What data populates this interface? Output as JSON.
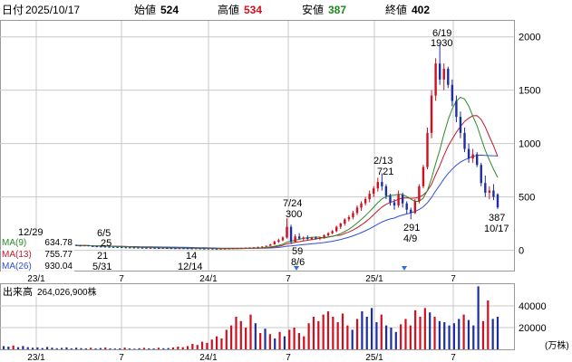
{
  "header": {
    "date_label": "日付",
    "date_value": "2025/10/17",
    "open_label": "始値",
    "open_value": "524",
    "high_label": "高値",
    "high_value": "534",
    "low_label": "安値",
    "low_value": "387",
    "close_label": "終値",
    "close_value": "402"
  },
  "colors": {
    "up": "#d0101e",
    "down": "#1c2ea0",
    "ma9": "#2a8a2a",
    "ma13": "#c41a2a",
    "ma26": "#2f4fd8",
    "grid": "#c8c8c8",
    "marker": "#2f6fd8",
    "high_value": "#d0101e",
    "low_value": "#1d8a1d"
  },
  "chart_data": [
    {
      "type": "candlestick",
      "description_x": "weekly candles",
      "y_ticks": [
        "0",
        "500",
        "1000",
        "1500",
        "2000"
      ],
      "ylim": [
        -190,
        2150
      ],
      "x_ticks": [
        "23/1",
        "7",
        "24/1",
        "7",
        "25/1",
        "7"
      ],
      "candles": [
        {
          "o": 50,
          "h": 55,
          "l": 45,
          "c": 45
        },
        {
          "o": 45,
          "h": 50,
          "l": 42,
          "c": 44
        },
        {
          "o": 44,
          "h": 48,
          "l": 40,
          "c": 46
        },
        {
          "o": 46,
          "h": 48,
          "l": 38,
          "c": 40
        },
        {
          "o": 40,
          "h": 44,
          "l": 36,
          "c": 38
        },
        {
          "o": 38,
          "h": 42,
          "l": 34,
          "c": 36
        },
        {
          "o": 36,
          "h": 40,
          "l": 33,
          "c": 35
        },
        {
          "o": 35,
          "h": 38,
          "l": 31,
          "c": 33
        },
        {
          "o": 33,
          "h": 36,
          "l": 30,
          "c": 32
        },
        {
          "o": 32,
          "h": 34,
          "l": 29,
          "c": 31
        },
        {
          "o": 31,
          "h": 33,
          "l": 28,
          "c": 30
        },
        {
          "o": 30,
          "h": 32,
          "l": 27,
          "c": 28
        },
        {
          "o": 28,
          "h": 30,
          "l": 25,
          "c": 27
        },
        {
          "o": 27,
          "h": 29,
          "l": 24,
          "c": 26
        },
        {
          "o": 26,
          "h": 28,
          "l": 24,
          "c": 25
        },
        {
          "o": 25,
          "h": 27,
          "l": 23,
          "c": 24
        },
        {
          "o": 24,
          "h": 26,
          "l": 22,
          "c": 23
        },
        {
          "o": 23,
          "h": 25,
          "l": 21,
          "c": 22
        },
        {
          "o": 22,
          "h": 24,
          "l": 21,
          "c": 23
        },
        {
          "o": 23,
          "h": 25,
          "l": 21,
          "c": 22
        },
        {
          "o": 22,
          "h": 24,
          "l": 20,
          "c": 21
        },
        {
          "o": 21,
          "h": 23,
          "l": 20,
          "c": 22
        },
        {
          "o": 22,
          "h": 24,
          "l": 20,
          "c": 21
        },
        {
          "o": 21,
          "h": 23,
          "l": 19,
          "c": 20
        },
        {
          "o": 20,
          "h": 22,
          "l": 18,
          "c": 19
        },
        {
          "o": 19,
          "h": 21,
          "l": 18,
          "c": 20
        },
        {
          "o": 20,
          "h": 22,
          "l": 18,
          "c": 19
        },
        {
          "o": 19,
          "h": 21,
          "l": 17,
          "c": 18
        },
        {
          "o": 18,
          "h": 20,
          "l": 16,
          "c": 17
        },
        {
          "o": 17,
          "h": 19,
          "l": 16,
          "c": 18
        },
        {
          "o": 18,
          "h": 19,
          "l": 15,
          "c": 16
        },
        {
          "o": 16,
          "h": 18,
          "l": 14,
          "c": 15
        },
        {
          "o": 15,
          "h": 17,
          "l": 14,
          "c": 16
        },
        {
          "o": 16,
          "h": 17,
          "l": 14,
          "c": 15
        },
        {
          "o": 15,
          "h": 17,
          "l": 14,
          "c": 14
        },
        {
          "o": 14,
          "h": 16,
          "l": 14,
          "c": 15
        },
        {
          "o": 15,
          "h": 17,
          "l": 14,
          "c": 16
        },
        {
          "o": 16,
          "h": 18,
          "l": 15,
          "c": 17
        },
        {
          "o": 17,
          "h": 19,
          "l": 16,
          "c": 18
        },
        {
          "o": 18,
          "h": 22,
          "l": 17,
          "c": 21
        },
        {
          "o": 21,
          "h": 24,
          "l": 20,
          "c": 22
        },
        {
          "o": 22,
          "h": 26,
          "l": 21,
          "c": 25
        },
        {
          "o": 25,
          "h": 28,
          "l": 24,
          "c": 26
        },
        {
          "o": 26,
          "h": 30,
          "l": 25,
          "c": 28
        },
        {
          "o": 28,
          "h": 34,
          "l": 27,
          "c": 32
        },
        {
          "o": 32,
          "h": 38,
          "l": 30,
          "c": 35
        },
        {
          "o": 35,
          "h": 45,
          "l": 33,
          "c": 42
        },
        {
          "o": 42,
          "h": 60,
          "l": 40,
          "c": 55
        },
        {
          "o": 55,
          "h": 90,
          "l": 52,
          "c": 80
        },
        {
          "o": 80,
          "h": 110,
          "l": 70,
          "c": 95
        },
        {
          "o": 95,
          "h": 130,
          "l": 85,
          "c": 120
        },
        {
          "o": 120,
          "h": 300,
          "l": 110,
          "c": 220
        },
        {
          "o": 220,
          "h": 240,
          "l": 59,
          "c": 80
        },
        {
          "o": 80,
          "h": 150,
          "l": 70,
          "c": 130
        },
        {
          "o": 130,
          "h": 160,
          "l": 100,
          "c": 110
        },
        {
          "o": 110,
          "h": 130,
          "l": 90,
          "c": 120
        },
        {
          "o": 120,
          "h": 140,
          "l": 100,
          "c": 105
        },
        {
          "o": 105,
          "h": 125,
          "l": 95,
          "c": 118
        },
        {
          "o": 118,
          "h": 130,
          "l": 100,
          "c": 110
        },
        {
          "o": 110,
          "h": 125,
          "l": 95,
          "c": 120
        },
        {
          "o": 120,
          "h": 150,
          "l": 110,
          "c": 140
        },
        {
          "o": 140,
          "h": 170,
          "l": 130,
          "c": 160
        },
        {
          "o": 160,
          "h": 190,
          "l": 150,
          "c": 180
        },
        {
          "o": 180,
          "h": 230,
          "l": 170,
          "c": 220
        },
        {
          "o": 220,
          "h": 260,
          "l": 200,
          "c": 250
        },
        {
          "o": 250,
          "h": 300,
          "l": 230,
          "c": 290
        },
        {
          "o": 290,
          "h": 330,
          "l": 270,
          "c": 310
        },
        {
          "o": 310,
          "h": 370,
          "l": 290,
          "c": 350
        },
        {
          "o": 350,
          "h": 420,
          "l": 330,
          "c": 400
        },
        {
          "o": 400,
          "h": 460,
          "l": 370,
          "c": 440
        },
        {
          "o": 440,
          "h": 500,
          "l": 420,
          "c": 480
        },
        {
          "o": 480,
          "h": 560,
          "l": 450,
          "c": 530
        },
        {
          "o": 530,
          "h": 600,
          "l": 500,
          "c": 580
        },
        {
          "o": 580,
          "h": 680,
          "l": 550,
          "c": 640
        },
        {
          "o": 640,
          "h": 721,
          "l": 560,
          "c": 600
        },
        {
          "o": 600,
          "h": 620,
          "l": 480,
          "c": 510
        },
        {
          "o": 510,
          "h": 530,
          "l": 420,
          "c": 450
        },
        {
          "o": 450,
          "h": 480,
          "l": 380,
          "c": 420
        },
        {
          "o": 420,
          "h": 560,
          "l": 400,
          "c": 520
        },
        {
          "o": 520,
          "h": 540,
          "l": 400,
          "c": 440
        },
        {
          "o": 440,
          "h": 460,
          "l": 340,
          "c": 380
        },
        {
          "o": 380,
          "h": 400,
          "l": 291,
          "c": 350
        },
        {
          "o": 350,
          "h": 480,
          "l": 340,
          "c": 460
        },
        {
          "o": 460,
          "h": 620,
          "l": 440,
          "c": 600
        },
        {
          "o": 600,
          "h": 800,
          "l": 580,
          "c": 780
        },
        {
          "o": 780,
          "h": 1150,
          "l": 760,
          "c": 1100
        },
        {
          "o": 1100,
          "h": 1500,
          "l": 1050,
          "c": 1450
        },
        {
          "o": 1450,
          "h": 1800,
          "l": 1400,
          "c": 1750
        },
        {
          "o": 1750,
          "h": 1930,
          "l": 1550,
          "c": 1600
        },
        {
          "o": 1600,
          "h": 1750,
          "l": 1500,
          "c": 1700
        },
        {
          "o": 1700,
          "h": 1720,
          "l": 1520,
          "c": 1550
        },
        {
          "o": 1550,
          "h": 1600,
          "l": 1350,
          "c": 1400
        },
        {
          "o": 1400,
          "h": 1450,
          "l": 1200,
          "c": 1250
        },
        {
          "o": 1250,
          "h": 1300,
          "l": 1050,
          "c": 1100
        },
        {
          "o": 1100,
          "h": 1150,
          "l": 920,
          "c": 950
        },
        {
          "o": 950,
          "h": 1000,
          "l": 820,
          "c": 860
        },
        {
          "o": 860,
          "h": 950,
          "l": 820,
          "c": 900
        },
        {
          "o": 900,
          "h": 920,
          "l": 780,
          "c": 800
        },
        {
          "o": 800,
          "h": 820,
          "l": 600,
          "c": 630
        },
        {
          "o": 630,
          "h": 700,
          "l": 500,
          "c": 540
        },
        {
          "o": 540,
          "h": 600,
          "l": 480,
          "c": 560
        },
        {
          "o": 560,
          "h": 620,
          "l": 470,
          "c": 500
        },
        {
          "o": 524,
          "h": 534,
          "l": 387,
          "c": 402
        }
      ],
      "ma_legend": [
        {
          "name": "MA(9)",
          "value": "634.78"
        },
        {
          "name": "MA(13)",
          "value": "755.77"
        },
        {
          "name": "MA(26)",
          "value": "930.04"
        }
      ],
      "annotations": [
        {
          "label": "12/29"
        },
        {
          "label": "6/5",
          "sub": "25"
        },
        {
          "label": "21",
          "sub": "5/31"
        },
        {
          "label": "14",
          "sub": "12/14"
        },
        {
          "label": "7/24",
          "sub": "300"
        },
        {
          "label": "59",
          "sub": "8/6"
        },
        {
          "label": "2/13",
          "sub": "721"
        },
        {
          "label": "291",
          "sub": "4/9"
        },
        {
          "label": "6/19",
          "sub": "1930"
        },
        {
          "label": "387",
          "sub": "10/17"
        }
      ]
    },
    {
      "type": "bar",
      "title": "出来高",
      "total_volume": "264,026,900株",
      "y_ticks": [
        "20000",
        "40000"
      ],
      "unit": "(万株)",
      "ylim": [
        0,
        60000
      ],
      "x_ticks": [
        "23/1",
        "7",
        "24/1",
        "7",
        "25/1",
        "7"
      ],
      "volumes": [
        {
          "v": 3000,
          "up": 0
        },
        {
          "v": 2500,
          "up": 0
        },
        {
          "v": 3500,
          "up": 1
        },
        {
          "v": 2000,
          "up": 0
        },
        {
          "v": 3000,
          "up": 0
        },
        {
          "v": 2000,
          "up": 0
        },
        {
          "v": 1500,
          "up": 0
        },
        {
          "v": 1800,
          "up": 0
        },
        {
          "v": 1200,
          "up": 0
        },
        {
          "v": 2200,
          "up": 0
        },
        {
          "v": 1500,
          "up": 0
        },
        {
          "v": 1000,
          "up": 0
        },
        {
          "v": 1300,
          "up": 0
        },
        {
          "v": 1800,
          "up": 0
        },
        {
          "v": 900,
          "up": 0
        },
        {
          "v": 1500,
          "up": 0
        },
        {
          "v": 1100,
          "up": 0
        },
        {
          "v": 900,
          "up": 0
        },
        {
          "v": 1500,
          "up": 1
        },
        {
          "v": 800,
          "up": 0
        },
        {
          "v": 1200,
          "up": 0
        },
        {
          "v": 1700,
          "up": 1
        },
        {
          "v": 900,
          "up": 0
        },
        {
          "v": 700,
          "up": 0
        },
        {
          "v": 900,
          "up": 0
        },
        {
          "v": 1600,
          "up": 1
        },
        {
          "v": 800,
          "up": 0
        },
        {
          "v": 600,
          "up": 0
        },
        {
          "v": 1000,
          "up": 0
        },
        {
          "v": 1400,
          "up": 1
        },
        {
          "v": 900,
          "up": 0
        },
        {
          "v": 800,
          "up": 0
        },
        {
          "v": 1500,
          "up": 1
        },
        {
          "v": 1000,
          "up": 0
        },
        {
          "v": 1200,
          "up": 0
        },
        {
          "v": 1800,
          "up": 1
        },
        {
          "v": 2500,
          "up": 1
        },
        {
          "v": 2000,
          "up": 1
        },
        {
          "v": 3000,
          "up": 1
        },
        {
          "v": 5000,
          "up": 1
        },
        {
          "v": 4000,
          "up": 1
        },
        {
          "v": 7000,
          "up": 1
        },
        {
          "v": 6000,
          "up": 1
        },
        {
          "v": 9000,
          "up": 1
        },
        {
          "v": 12000,
          "up": 1
        },
        {
          "v": 10000,
          "up": 1
        },
        {
          "v": 18000,
          "up": 1
        },
        {
          "v": 22000,
          "up": 1
        },
        {
          "v": 30000,
          "up": 1
        },
        {
          "v": 26000,
          "up": 1
        },
        {
          "v": 20000,
          "up": 1
        },
        {
          "v": 32000,
          "up": 1
        },
        {
          "v": 24000,
          "up": 0
        },
        {
          "v": 15000,
          "up": 1
        },
        {
          "v": 19000,
          "up": 0
        },
        {
          "v": 14000,
          "up": 1
        },
        {
          "v": 10000,
          "up": 0
        },
        {
          "v": 16000,
          "up": 1
        },
        {
          "v": 12000,
          "up": 0
        },
        {
          "v": 18000,
          "up": 1
        },
        {
          "v": 20000,
          "up": 1
        },
        {
          "v": 15000,
          "up": 1
        },
        {
          "v": 12000,
          "up": 1
        },
        {
          "v": 24000,
          "up": 1
        },
        {
          "v": 30000,
          "up": 1
        },
        {
          "v": 26000,
          "up": 1
        },
        {
          "v": 32000,
          "up": 1
        },
        {
          "v": 35000,
          "up": 1
        },
        {
          "v": 30000,
          "up": 1
        },
        {
          "v": 25000,
          "up": 1
        },
        {
          "v": 33000,
          "up": 1
        },
        {
          "v": 22000,
          "up": 1
        },
        {
          "v": 18000,
          "up": 0
        },
        {
          "v": 28000,
          "up": 1
        },
        {
          "v": 35000,
          "up": 0
        },
        {
          "v": 30000,
          "up": 0
        },
        {
          "v": 38000,
          "up": 0
        },
        {
          "v": 25000,
          "up": 0
        },
        {
          "v": 32000,
          "up": 1
        },
        {
          "v": 22000,
          "up": 0
        },
        {
          "v": 20000,
          "up": 0
        },
        {
          "v": 16000,
          "up": 0
        },
        {
          "v": 23000,
          "up": 1
        },
        {
          "v": 28000,
          "up": 1
        },
        {
          "v": 22000,
          "up": 1
        },
        {
          "v": 36000,
          "up": 1
        },
        {
          "v": 30000,
          "up": 1
        },
        {
          "v": 38000,
          "up": 1
        },
        {
          "v": 34000,
          "up": 0
        },
        {
          "v": 30000,
          "up": 1
        },
        {
          "v": 26000,
          "up": 0
        },
        {
          "v": 25000,
          "up": 0
        },
        {
          "v": 22000,
          "up": 0
        },
        {
          "v": 24000,
          "up": 0
        },
        {
          "v": 28000,
          "up": 0
        },
        {
          "v": 32000,
          "up": 1
        },
        {
          "v": 27000,
          "up": 0
        },
        {
          "v": 22000,
          "up": 0
        },
        {
          "v": 58000,
          "up": 0
        },
        {
          "v": 26000,
          "up": 1
        },
        {
          "v": 45000,
          "up": 1
        },
        {
          "v": 28000,
          "up": 0
        },
        {
          "v": 30000,
          "up": 0
        }
      ]
    }
  ]
}
